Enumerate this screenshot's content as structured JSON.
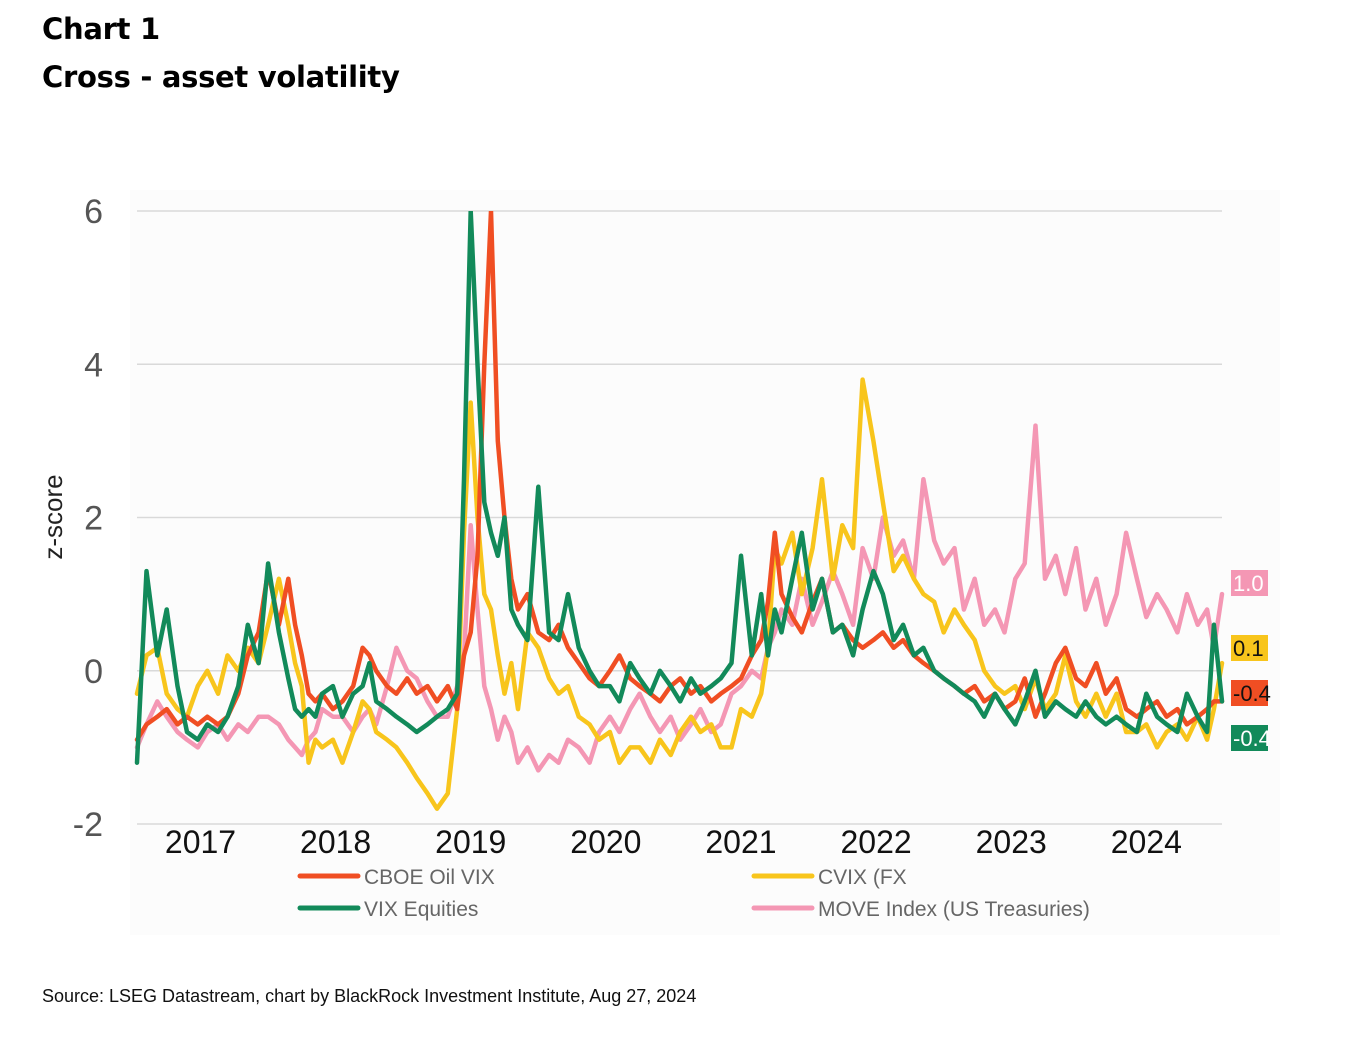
{
  "header": {
    "chart_number": "Chart 1",
    "title": "Cross - asset volatility"
  },
  "footer": {
    "source": "Source: LSEG Datastream, chart by BlackRock Investment Institute, Aug 27, 2024"
  },
  "chart_data": {
    "type": "line",
    "title": "Cross - asset volatility",
    "xlabel": "",
    "ylabel": "z-score",
    "ylim": [
      -2,
      6
    ],
    "xlim": [
      2016.53,
      2024.56
    ],
    "yticks": [
      -2,
      0,
      2,
      4,
      6
    ],
    "ytick_labels": [
      "-2",
      "0",
      "2",
      "4",
      "6"
    ],
    "xticks": [
      2017,
      2018,
      2019,
      2020,
      2021,
      2022,
      2023,
      2024
    ],
    "xtick_labels": [
      "2017",
      "2018",
      "2019",
      "2020",
      "2021",
      "2022",
      "2023",
      "2024"
    ],
    "grid": true,
    "legend_position": "bottom",
    "series": [
      {
        "name": "CBOE Oil VIX",
        "color": "#f04e23",
        "end_label": "-0.4",
        "x": [
          2016.53,
          2016.6,
          2016.68,
          2016.75,
          2016.83,
          2016.9,
          2016.98,
          2017.05,
          2017.13,
          2017.2,
          2017.28,
          2017.35,
          2017.43,
          2017.5,
          2017.58,
          2017.65,
          2017.7,
          2017.75,
          2017.8,
          2017.85,
          2017.9,
          2017.98,
          2018.05,
          2018.13,
          2018.2,
          2018.25,
          2018.3,
          2018.38,
          2018.45,
          2018.53,
          2018.6,
          2018.68,
          2018.75,
          2018.83,
          2018.9,
          2018.95,
          2019.0,
          2019.05,
          2019.1,
          2019.15,
          2019.2,
          2019.25,
          2019.3,
          2019.35,
          2019.42,
          2019.5,
          2019.58,
          2019.65,
          2019.72,
          2019.8,
          2019.88,
          2019.95,
          2020.03,
          2020.1,
          2020.18,
          2020.25,
          2020.33,
          2020.4,
          2020.48,
          2020.55,
          2020.63,
          2020.7,
          2020.78,
          2020.85,
          2020.93,
          2021.0,
          2021.08,
          2021.15,
          2021.2,
          2021.25,
          2021.3,
          2021.38,
          2021.45,
          2021.53,
          2021.6,
          2021.68,
          2021.75,
          2021.83,
          2021.9,
          2021.98,
          2022.05,
          2022.13,
          2022.2,
          2022.28,
          2022.35,
          2022.43,
          2022.5,
          2022.58,
          2022.65,
          2022.73,
          2022.8,
          2022.88,
          2022.95,
          2023.03,
          2023.1,
          2023.18,
          2023.25,
          2023.33,
          2023.4,
          2023.48,
          2023.55,
          2023.63,
          2023.7,
          2023.78,
          2023.85,
          2023.93,
          2024.0,
          2024.08,
          2024.15,
          2024.23,
          2024.3,
          2024.38,
          2024.45,
          2024.5,
          2024.56
        ],
        "y": [
          -0.9,
          -0.7,
          -0.6,
          -0.5,
          -0.7,
          -0.6,
          -0.7,
          -0.6,
          -0.7,
          -0.6,
          -0.3,
          0.2,
          0.5,
          1.3,
          0.6,
          1.2,
          0.6,
          0.2,
          -0.3,
          -0.4,
          -0.3,
          -0.5,
          -0.4,
          -0.2,
          0.3,
          0.2,
          0.0,
          -0.2,
          -0.3,
          -0.1,
          -0.3,
          -0.2,
          -0.4,
          -0.2,
          -0.5,
          0.2,
          0.5,
          1.5,
          4.0,
          6.0,
          3.0,
          2.0,
          1.2,
          0.8,
          1.0,
          0.5,
          0.4,
          0.6,
          0.3,
          0.1,
          -0.1,
          -0.2,
          0.0,
          0.2,
          -0.1,
          -0.2,
          -0.3,
          -0.4,
          -0.2,
          -0.1,
          -0.3,
          -0.2,
          -0.4,
          -0.3,
          -0.2,
          -0.1,
          0.2,
          0.4,
          0.9,
          1.8,
          1.0,
          0.7,
          0.5,
          0.9,
          1.2,
          0.5,
          0.6,
          0.4,
          0.3,
          0.4,
          0.5,
          0.3,
          0.4,
          0.2,
          0.1,
          0.0,
          -0.1,
          -0.2,
          -0.3,
          -0.2,
          -0.4,
          -0.3,
          -0.5,
          -0.4,
          -0.1,
          -0.6,
          -0.3,
          0.1,
          0.3,
          -0.1,
          -0.2,
          0.1,
          -0.3,
          -0.1,
          -0.5,
          -0.6,
          -0.5,
          -0.4,
          -0.6,
          -0.5,
          -0.7,
          -0.6,
          -0.5,
          -0.4,
          -0.4
        ]
      },
      {
        "name": "CVIX (FX",
        "color": "#f8c51c",
        "end_label": "0.1",
        "x": [
          2016.53,
          2016.6,
          2016.68,
          2016.75,
          2016.83,
          2016.9,
          2016.98,
          2017.05,
          2017.13,
          2017.2,
          2017.28,
          2017.35,
          2017.43,
          2017.5,
          2017.58,
          2017.65,
          2017.7,
          2017.75,
          2017.8,
          2017.85,
          2017.9,
          2017.98,
          2018.05,
          2018.13,
          2018.2,
          2018.25,
          2018.3,
          2018.38,
          2018.45,
          2018.53,
          2018.6,
          2018.68,
          2018.75,
          2018.83,
          2018.9,
          2018.95,
          2019.0,
          2019.05,
          2019.1,
          2019.15,
          2019.2,
          2019.25,
          2019.3,
          2019.35,
          2019.42,
          2019.5,
          2019.58,
          2019.65,
          2019.72,
          2019.8,
          2019.88,
          2019.95,
          2020.03,
          2020.1,
          2020.18,
          2020.25,
          2020.33,
          2020.4,
          2020.48,
          2020.55,
          2020.63,
          2020.7,
          2020.78,
          2020.85,
          2020.93,
          2021.0,
          2021.08,
          2021.15,
          2021.2,
          2021.25,
          2021.3,
          2021.38,
          2021.45,
          2021.53,
          2021.6,
          2021.68,
          2021.75,
          2021.83,
          2021.9,
          2021.98,
          2022.05,
          2022.13,
          2022.2,
          2022.28,
          2022.35,
          2022.43,
          2022.5,
          2022.58,
          2022.65,
          2022.73,
          2022.8,
          2022.88,
          2022.95,
          2023.03,
          2023.1,
          2023.18,
          2023.25,
          2023.33,
          2023.4,
          2023.48,
          2023.55,
          2023.63,
          2023.7,
          2023.78,
          2023.85,
          2023.93,
          2024.0,
          2024.08,
          2024.15,
          2024.23,
          2024.3,
          2024.38,
          2024.45,
          2024.5,
          2024.56
        ],
        "y": [
          -0.3,
          0.2,
          0.3,
          -0.3,
          -0.5,
          -0.6,
          -0.2,
          0.0,
          -0.3,
          0.2,
          0.0,
          0.3,
          0.1,
          0.6,
          1.2,
          0.6,
          0.1,
          -0.2,
          -1.2,
          -0.9,
          -1.0,
          -0.9,
          -1.2,
          -0.8,
          -0.4,
          -0.5,
          -0.8,
          -0.9,
          -1.0,
          -1.2,
          -1.4,
          -1.6,
          -1.8,
          -1.6,
          -0.5,
          1.8,
          3.5,
          2.0,
          1.0,
          0.8,
          0.2,
          -0.3,
          0.1,
          -0.5,
          0.5,
          0.3,
          -0.1,
          -0.3,
          -0.2,
          -0.6,
          -0.7,
          -0.9,
          -0.8,
          -1.2,
          -1.0,
          -1.0,
          -1.2,
          -0.9,
          -1.1,
          -0.8,
          -0.6,
          -0.8,
          -0.7,
          -1.0,
          -1.0,
          -0.5,
          -0.6,
          -0.3,
          0.3,
          1.6,
          1.4,
          1.8,
          1.0,
          1.6,
          2.5,
          1.2,
          1.9,
          1.6,
          3.8,
          3.0,
          2.2,
          1.3,
          1.5,
          1.2,
          1.0,
          0.9,
          0.5,
          0.8,
          0.6,
          0.4,
          0.0,
          -0.2,
          -0.3,
          -0.2,
          -0.5,
          -0.1,
          -0.5,
          -0.3,
          0.2,
          -0.4,
          -0.6,
          -0.3,
          -0.6,
          -0.3,
          -0.8,
          -0.8,
          -0.7,
          -1.0,
          -0.8,
          -0.7,
          -0.9,
          -0.6,
          -0.9,
          -0.5,
          0.1
        ]
      },
      {
        "name": "VIX Equities",
        "color": "#128a5a",
        "end_label": "-0.4",
        "x": [
          2016.53,
          2016.6,
          2016.68,
          2016.75,
          2016.83,
          2016.9,
          2016.98,
          2017.05,
          2017.13,
          2017.2,
          2017.28,
          2017.35,
          2017.43,
          2017.5,
          2017.58,
          2017.65,
          2017.7,
          2017.75,
          2017.8,
          2017.85,
          2017.9,
          2017.98,
          2018.05,
          2018.13,
          2018.2,
          2018.25,
          2018.3,
          2018.38,
          2018.45,
          2018.53,
          2018.6,
          2018.68,
          2018.75,
          2018.83,
          2018.9,
          2018.95,
          2019.0,
          2019.05,
          2019.1,
          2019.15,
          2019.2,
          2019.25,
          2019.3,
          2019.35,
          2019.42,
          2019.5,
          2019.58,
          2019.65,
          2019.72,
          2019.8,
          2019.88,
          2019.95,
          2020.03,
          2020.1,
          2020.18,
          2020.25,
          2020.33,
          2020.4,
          2020.48,
          2020.55,
          2020.63,
          2020.7,
          2020.78,
          2020.85,
          2020.93,
          2021.0,
          2021.08,
          2021.15,
          2021.2,
          2021.25,
          2021.3,
          2021.38,
          2021.45,
          2021.53,
          2021.6,
          2021.68,
          2021.75,
          2021.83,
          2021.9,
          2021.98,
          2022.05,
          2022.13,
          2022.2,
          2022.28,
          2022.35,
          2022.43,
          2022.5,
          2022.58,
          2022.65,
          2022.73,
          2022.8,
          2022.88,
          2022.95,
          2023.03,
          2023.1,
          2023.18,
          2023.25,
          2023.33,
          2023.4,
          2023.48,
          2023.55,
          2023.63,
          2023.7,
          2023.78,
          2023.85,
          2023.93,
          2024.0,
          2024.08,
          2024.15,
          2024.23,
          2024.3,
          2024.38,
          2024.45,
          2024.5,
          2024.56
        ],
        "y": [
          -1.2,
          1.3,
          0.2,
          0.8,
          -0.2,
          -0.8,
          -0.9,
          -0.7,
          -0.8,
          -0.6,
          -0.2,
          0.6,
          0.1,
          1.4,
          0.5,
          -0.1,
          -0.5,
          -0.6,
          -0.5,
          -0.6,
          -0.3,
          -0.2,
          -0.6,
          -0.3,
          -0.2,
          0.1,
          -0.4,
          -0.5,
          -0.6,
          -0.7,
          -0.8,
          -0.7,
          -0.6,
          -0.5,
          -0.3,
          2.5,
          6.0,
          4.0,
          2.2,
          1.8,
          1.5,
          2.0,
          0.8,
          0.6,
          0.4,
          2.4,
          0.5,
          0.4,
          1.0,
          0.3,
          0.0,
          -0.2,
          -0.2,
          -0.4,
          0.1,
          -0.1,
          -0.3,
          0.0,
          -0.2,
          -0.4,
          -0.1,
          -0.3,
          -0.2,
          -0.1,
          0.1,
          1.5,
          0.2,
          1.0,
          0.2,
          0.8,
          0.5,
          1.2,
          1.8,
          0.8,
          1.2,
          0.5,
          0.6,
          0.2,
          0.8,
          1.3,
          1.0,
          0.4,
          0.6,
          0.2,
          0.3,
          0.0,
          -0.1,
          -0.2,
          -0.3,
          -0.4,
          -0.6,
          -0.3,
          -0.5,
          -0.7,
          -0.4,
          0.0,
          -0.6,
          -0.4,
          -0.5,
          -0.6,
          -0.4,
          -0.6,
          -0.7,
          -0.6,
          -0.7,
          -0.8,
          -0.3,
          -0.6,
          -0.7,
          -0.8,
          -0.3,
          -0.6,
          -0.8,
          0.6,
          -0.4
        ]
      },
      {
        "name": "MOVE Index (US Treasuries)",
        "color": "#f497b4",
        "end_label": "1.0",
        "x": [
          2016.53,
          2016.6,
          2016.68,
          2016.75,
          2016.83,
          2016.9,
          2016.98,
          2017.05,
          2017.13,
          2017.2,
          2017.28,
          2017.35,
          2017.43,
          2017.5,
          2017.58,
          2017.65,
          2017.7,
          2017.75,
          2017.8,
          2017.85,
          2017.9,
          2017.98,
          2018.05,
          2018.13,
          2018.2,
          2018.25,
          2018.3,
          2018.38,
          2018.45,
          2018.53,
          2018.6,
          2018.68,
          2018.75,
          2018.83,
          2018.9,
          2018.95,
          2019.0,
          2019.05,
          2019.1,
          2019.15,
          2019.2,
          2019.25,
          2019.3,
          2019.35,
          2019.42,
          2019.5,
          2019.58,
          2019.65,
          2019.72,
          2019.8,
          2019.88,
          2019.95,
          2020.03,
          2020.1,
          2020.18,
          2020.25,
          2020.33,
          2020.4,
          2020.48,
          2020.55,
          2020.63,
          2020.7,
          2020.78,
          2020.85,
          2020.93,
          2021.0,
          2021.08,
          2021.15,
          2021.2,
          2021.25,
          2021.3,
          2021.38,
          2021.45,
          2021.53,
          2021.6,
          2021.68,
          2021.75,
          2021.83,
          2021.9,
          2021.98,
          2022.05,
          2022.13,
          2022.2,
          2022.28,
          2022.35,
          2022.43,
          2022.5,
          2022.58,
          2022.65,
          2022.73,
          2022.8,
          2022.88,
          2022.95,
          2023.03,
          2023.1,
          2023.18,
          2023.25,
          2023.33,
          2023.4,
          2023.48,
          2023.55,
          2023.63,
          2023.7,
          2023.78,
          2023.85,
          2023.93,
          2024.0,
          2024.08,
          2024.15,
          2024.23,
          2024.3,
          2024.38,
          2024.45,
          2024.5,
          2024.56
        ],
        "y": [
          -1.0,
          -0.7,
          -0.4,
          -0.6,
          -0.8,
          -0.9,
          -1.0,
          -0.8,
          -0.7,
          -0.9,
          -0.7,
          -0.8,
          -0.6,
          -0.6,
          -0.7,
          -0.9,
          -1.0,
          -1.1,
          -0.9,
          -0.8,
          -0.5,
          -0.6,
          -0.6,
          -0.8,
          -0.6,
          -0.5,
          -0.7,
          -0.2,
          0.3,
          0.0,
          -0.1,
          -0.4,
          -0.6,
          -0.6,
          -0.2,
          0.2,
          1.9,
          0.8,
          -0.2,
          -0.5,
          -0.9,
          -0.6,
          -0.8,
          -1.2,
          -1.0,
          -1.3,
          -1.1,
          -1.2,
          -0.9,
          -1.0,
          -1.2,
          -0.8,
          -0.6,
          -0.8,
          -0.5,
          -0.3,
          -0.6,
          -0.8,
          -0.6,
          -0.9,
          -0.7,
          -0.5,
          -0.8,
          -0.7,
          -0.3,
          -0.2,
          0.0,
          -0.1,
          0.3,
          0.5,
          0.8,
          0.6,
          1.2,
          0.6,
          0.9,
          1.3,
          1.0,
          0.6,
          1.6,
          1.2,
          2.0,
          1.5,
          1.7,
          1.2,
          2.5,
          1.7,
          1.4,
          1.6,
          0.8,
          1.2,
          0.6,
          0.8,
          0.5,
          1.2,
          1.4,
          3.2,
          1.2,
          1.5,
          1.0,
          1.6,
          0.8,
          1.2,
          0.6,
          1.0,
          1.8,
          1.2,
          0.7,
          1.0,
          0.8,
          0.5,
          1.0,
          0.6,
          0.8,
          0.3,
          1.0
        ]
      }
    ],
    "end_labels": [
      {
        "series": "MOVE Index (US Treasuries)",
        "text": "1.0",
        "value": 1.0
      },
      {
        "series": "CVIX (FX",
        "text": "0.1",
        "value": 0.1
      },
      {
        "series": "CBOE Oil VIX",
        "text": "-0.4",
        "value": -0.4
      },
      {
        "series": "VIX Equities",
        "text": "-0.4",
        "value": -0.4
      }
    ]
  }
}
